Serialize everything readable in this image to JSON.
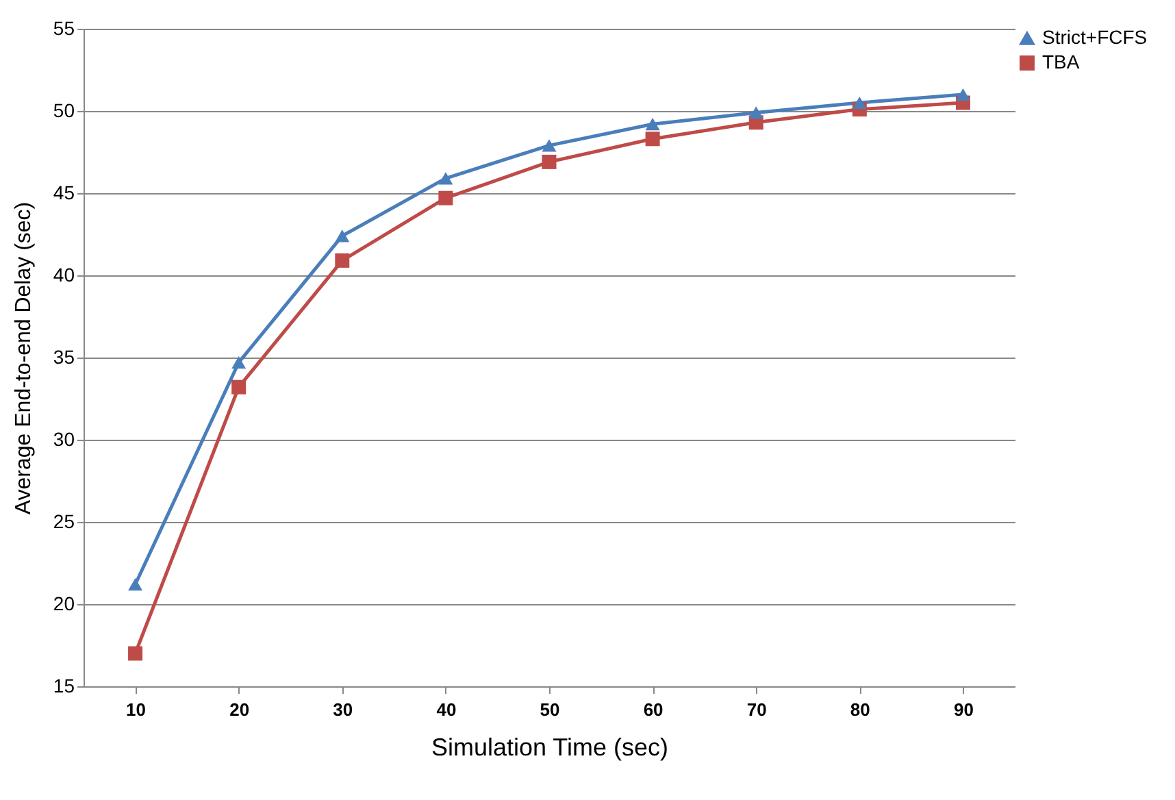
{
  "chart_data": {
    "type": "line",
    "xlabel": "Simulation Time (sec)",
    "ylabel": "Average End-to-end  Delay (sec)",
    "categories": [
      "10",
      "20",
      "30",
      "40",
      "50",
      "60",
      "70",
      "80",
      "90"
    ],
    "series": [
      {
        "name": "Strict+FCFS",
        "color": "#4a7ebb",
        "marker": "triangle",
        "values": [
          21.2,
          34.7,
          42.4,
          45.9,
          47.9,
          49.2,
          49.9,
          50.5,
          51.0
        ]
      },
      {
        "name": "TBA",
        "color": "#be4b48",
        "marker": "square",
        "values": [
          17.0,
          33.2,
          40.9,
          44.7,
          46.9,
          48.3,
          49.3,
          50.1,
          50.5
        ]
      }
    ],
    "ylim": [
      15,
      55
    ],
    "yticks": [
      15,
      20,
      25,
      30,
      35,
      40,
      45,
      50,
      55
    ],
    "grid": "y",
    "legend": "right",
    "line_style": "solid"
  }
}
